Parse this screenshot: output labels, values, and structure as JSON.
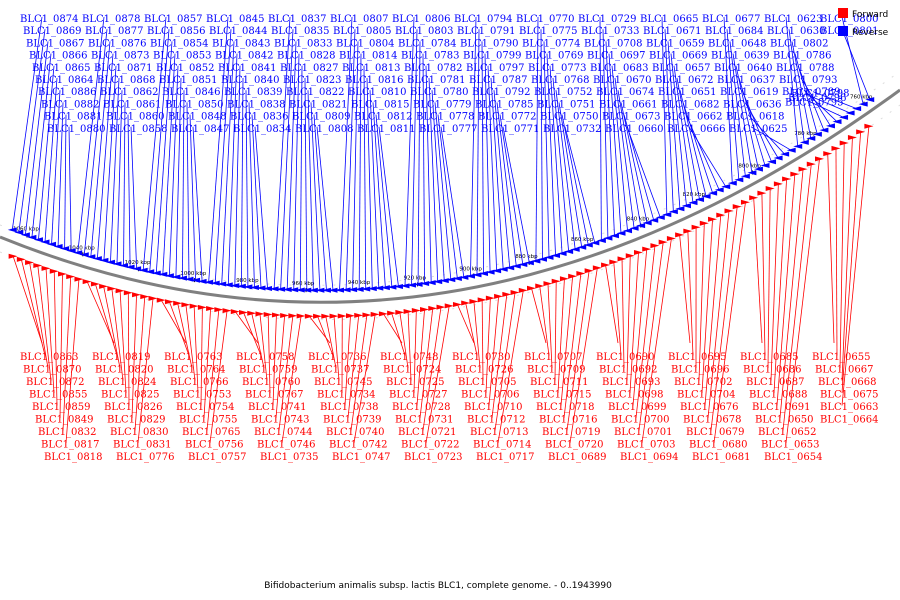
{
  "caption": "Bifidobacterium animalis subsp. lactis BLC1, complete genome. - 0..1943990",
  "legend": [
    {
      "label": "Forward",
      "color": "#ff0000"
    },
    {
      "label": "Reverse",
      "color": "#0000ff"
    }
  ],
  "colors": {
    "forward": "#ff0000",
    "reverse": "#0000ff",
    "backbone": "#808080"
  },
  "ticks": [
    "1060 kbp",
    "1040 kbp",
    "1020 kbp",
    "1000 kbp",
    "980 kbp",
    "960 kbp",
    "940 kbp",
    "920 kbp",
    "900 kbp",
    "880 kbp",
    "860 kbp",
    "840 kbp",
    "820 kbp",
    "800 kbp",
    "780 kbp",
    "760 kbp"
  ],
  "reverse_genes": [
    "BLC1_0874",
    "BLC1_0869",
    "BLC1_0867",
    "BLC1_0866",
    "BLC1_0865",
    "BLC1_0864",
    "BLC1_0886",
    "BLC1_0882",
    "BLC1_0881",
    "BLC1_0880",
    "BLC1_0878",
    "BLC1_0877",
    "BLC1_0876",
    "BLC1_0873",
    "BLC1_0871",
    "BLC1_0868",
    "BLC1_0862",
    "BLC1_0861",
    "BLC1_0860",
    "BLC1_0858",
    "BLC1_0857",
    "BLC1_0856",
    "BLC1_0854",
    "BLC1_0853",
    "BLC1_0852",
    "BLC1_0851",
    "BLC1_0846",
    "BLC1_0850",
    "BLC1_0848",
    "BLC1_0847",
    "BLC1_0845",
    "BLC1_0844",
    "BLC1_0843",
    "BLC1_0842",
    "BLC1_0841",
    "BLC1_0840",
    "BLC1_0839",
    "BLC1_0838",
    "BLC1_0836",
    "BLC1_0834",
    "BLC1_0837",
    "BLC1_0835",
    "BLC1_0833",
    "BLC1_0828",
    "BLC1_0827",
    "BLC1_0823",
    "BLC1_0822",
    "BLC1_0821",
    "BLC1_0809",
    "BLC1_0808",
    "BLC1_0807",
    "BLC1_0805",
    "BLC1_0804",
    "BLC1_0814",
    "BLC1_0813",
    "BLC1_0816",
    "BLC1_0810",
    "BLC1_0815",
    "BLC1_0812",
    "BLC1_0811",
    "BLC1_0806",
    "BLC1_0803",
    "BLC1_0784",
    "BLC1_0783",
    "BLC1_0782",
    "BLC1_0781",
    "BLC1_0780",
    "BLC1_0779",
    "BLC1_0778",
    "BLC1_0777",
    "BLC1_0794",
    "BLC1_0791",
    "BLC1_0790",
    "BLC1_0799",
    "BLC1_0797",
    "BLC1_0787",
    "BLC1_0792",
    "BLC1_0785",
    "BLC1_0772",
    "BLC1_0771",
    "BLC1_0770",
    "BLC1_0775",
    "BLC1_0774",
    "BLC1_0769",
    "BLC1_0773",
    "BLC1_0768",
    "BLC1_0752",
    "BLC1_0751",
    "BLC1_0750",
    "BLC1_0732",
    "BLC1_0729",
    "BLC1_0733",
    "BLC1_0708",
    "BLC1_0697",
    "BLC1_0683",
    "BLC1_0670",
    "BLC1_0674",
    "BLC1_0661",
    "BLC1_0673",
    "BLC1_0660",
    "BLC1_0665",
    "BLC1_0671",
    "BLC1_0659",
    "BLC1_0669",
    "BLC1_0657",
    "BLC1_0672",
    "BLC1_0651",
    "BLC1_0682",
    "BLC1_0662",
    "BLC1_0666",
    "BLC1_0677",
    "BLC1_0684",
    "BLC1_0648",
    "BLC1_0639",
    "BLC1_0640",
    "BLC1_0637",
    "BLC1_0619",
    "BLC1_0636",
    "BLC1_0618",
    "BLC1_0625",
    "BLC1_0623",
    "BLC1_0630",
    "BLC1_0802",
    "BLC1_0786",
    "BLC1_0788",
    "BLC1_0793",
    "BLC1_0789",
    "BLC1_0795",
    "BLC1_0796",
    "BLC1_0798",
    "BLC1_0800",
    "BLC1_0801"
  ],
  "forward_genes": [
    "BLC1_0863",
    "BLC1_0870",
    "BLC1_0872",
    "BLC1_0855",
    "BLC1_0859",
    "BLC1_0849",
    "BLC1_0832",
    "BLC1_0817",
    "BLC1_0818",
    "BLC1_0819",
    "BLC1_0820",
    "BLC1_0824",
    "BLC1_0825",
    "BLC1_0826",
    "BLC1_0829",
    "BLC1_0830",
    "BLC1_0831",
    "BLC1_0776",
    "BLC1_0763",
    "BLC1_0764",
    "BLC1_0766",
    "BLC1_0753",
    "BLC1_0754",
    "BLC1_0755",
    "BLC1_0765",
    "BLC1_0756",
    "BLC1_0757",
    "BLC1_0758",
    "BLC1_0759",
    "BLC1_0760",
    "BLC1_0767",
    "BLC1_0741",
    "BLC1_0743",
    "BLC1_0744",
    "BLC1_0746",
    "BLC1_0735",
    "BLC1_0736",
    "BLC1_0737",
    "BLC1_0745",
    "BLC1_0734",
    "BLC1_0738",
    "BLC1_0739",
    "BLC1_0740",
    "BLC1_0742",
    "BLC1_0747",
    "BLC1_0748",
    "BLC1_0724",
    "BLC1_0725",
    "BLC1_0727",
    "BLC1_0728",
    "BLC1_0731",
    "BLC1_0721",
    "BLC1_0722",
    "BLC1_0723",
    "BLC1_0730",
    "BLC1_0726",
    "BLC1_0705",
    "BLC1_0706",
    "BLC1_0710",
    "BLC1_0712",
    "BLC1_0713",
    "BLC1_0714",
    "BLC1_0717",
    "BLC1_0707",
    "BLC1_0709",
    "BLC1_0711",
    "BLC1_0715",
    "BLC1_0718",
    "BLC1_0716",
    "BLC1_0719",
    "BLC1_0720",
    "BLC1_0689",
    "BLC1_0690",
    "BLC1_0692",
    "BLC1_0693",
    "BLC1_0698",
    "BLC1_0699",
    "BLC1_0700",
    "BLC1_0701",
    "BLC1_0703",
    "BLC1_0694",
    "BLC1_0695",
    "BLC1_0696",
    "BLC1_0702",
    "BLC1_0704",
    "BLC1_0676",
    "BLC1_0678",
    "BLC1_0679",
    "BLC1_0680",
    "BLC1_0681",
    "BLC1_0685",
    "BLC1_0686",
    "BLC1_0687",
    "BLC1_0688",
    "BLC1_0691",
    "BLC1_0650",
    "BLC1_0652",
    "BLC1_0653",
    "BLC1_0654",
    "BLC1_0655",
    "BLC1_0667",
    "BLC1_0668",
    "BLC1_0675",
    "BLC1_0663",
    "BLC1_0664"
  ]
}
